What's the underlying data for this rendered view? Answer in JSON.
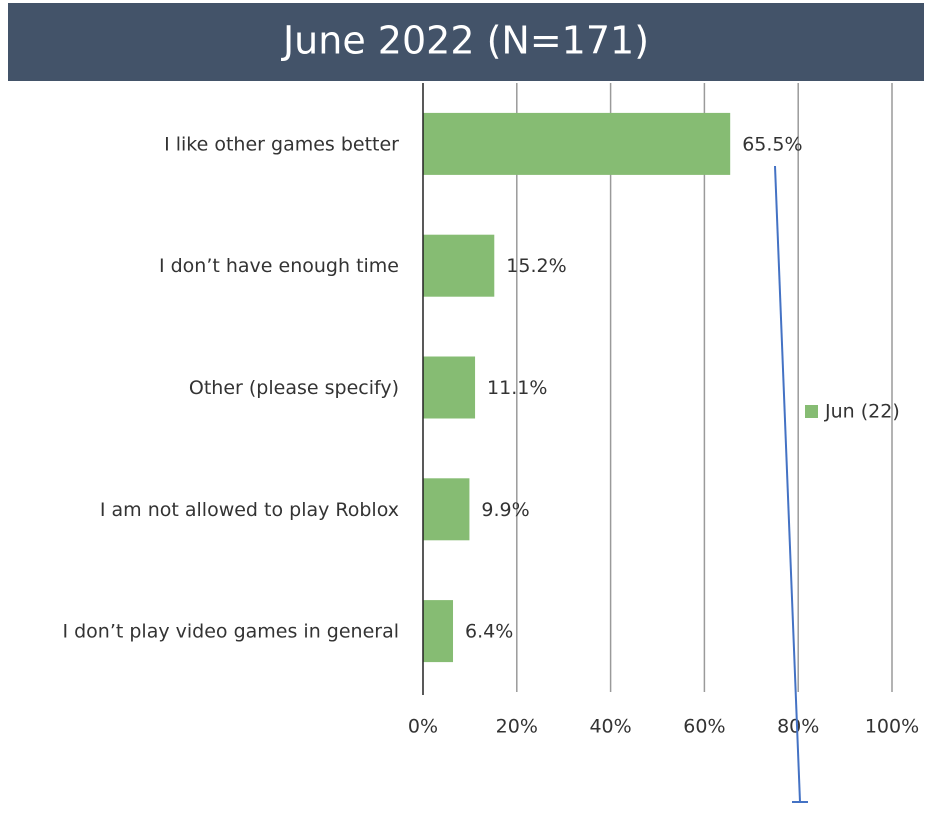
{
  "chart_data": {
    "type": "bar",
    "orientation": "horizontal",
    "title": "June 2022 (N=171)",
    "categories": [
      "I like other games better",
      "I don’t have enough time",
      "Other (please specify)",
      "I am not allowed to play Roblox",
      "I don’t play video games in general"
    ],
    "series": [
      {
        "name": "Jun (22)",
        "color": "#86bc73",
        "values": [
          65.5,
          15.2,
          11.1,
          9.9,
          6.4
        ],
        "value_labels": [
          "65.5%",
          "15.2%",
          "11.1%",
          "9.9%",
          "6.4%"
        ]
      }
    ],
    "xlim": [
      0,
      100
    ],
    "xticks": [
      {
        "value": 0,
        "label": "0%"
      },
      {
        "value": 20,
        "label": "20%"
      },
      {
        "value": 40,
        "label": "40%"
      },
      {
        "value": 60,
        "label": "60%"
      },
      {
        "value": 80,
        "label": "80%"
      },
      {
        "value": 100,
        "label": "100%"
      }
    ],
    "grid": true,
    "legend": "right"
  }
}
